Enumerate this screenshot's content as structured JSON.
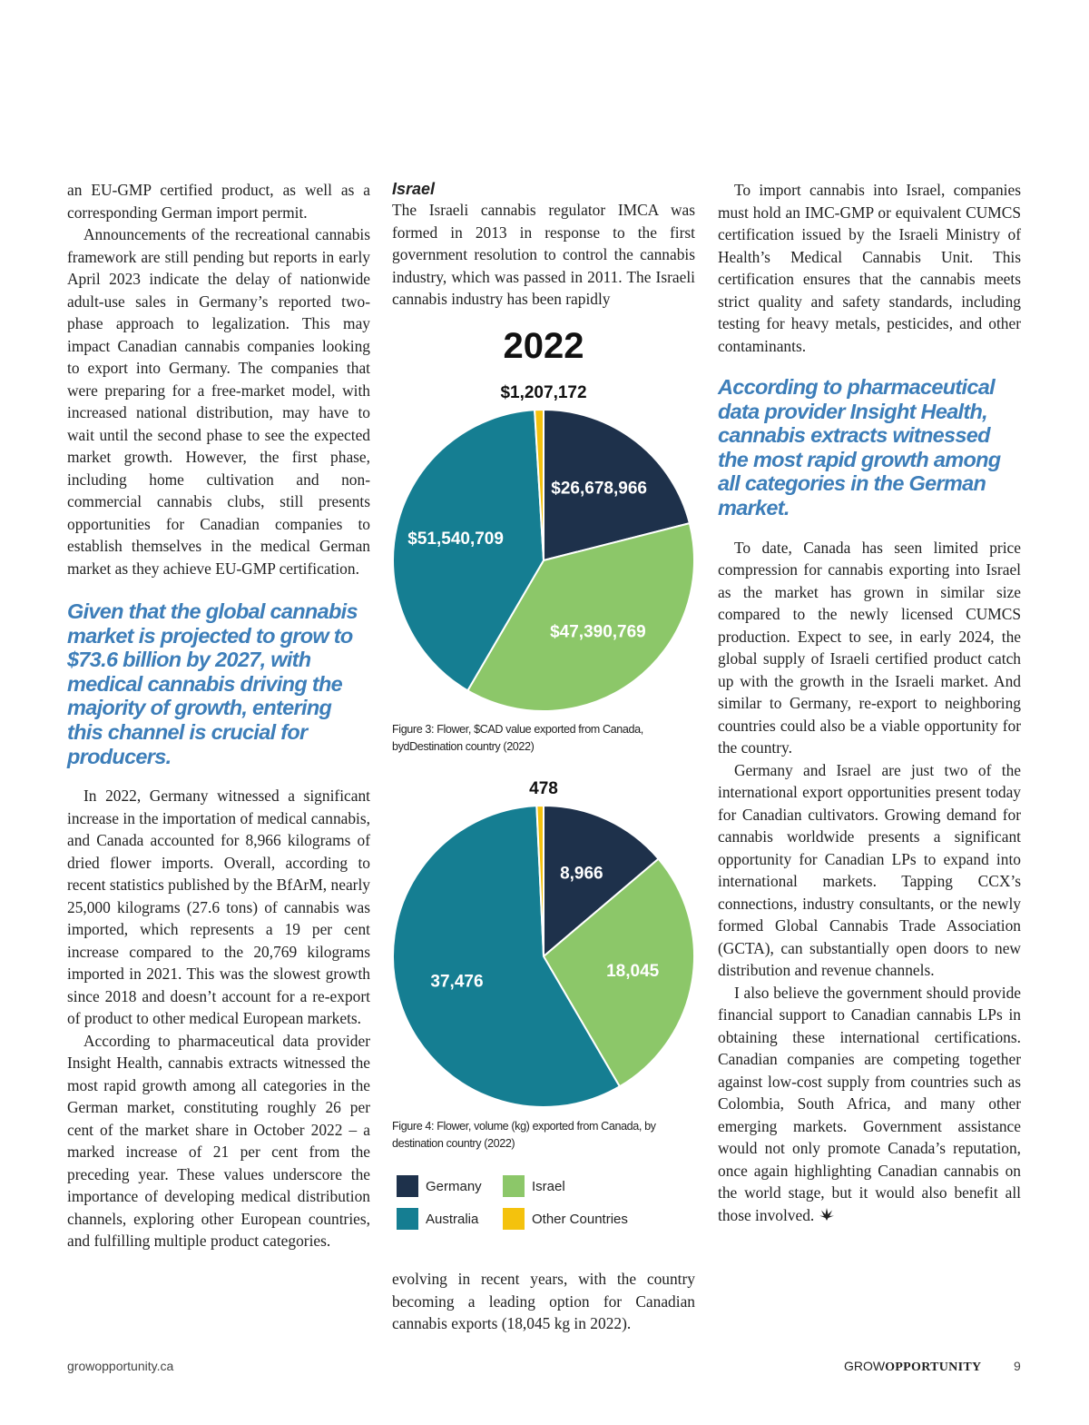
{
  "column1": {
    "paragraphs": [
      "an EU-GMP certified product, as well as a corresponding German import permit.",
      "Announcements of the recreational cannabis framework are still pending but reports in early April 2023 indicate the delay of nationwide adult-use sales in Germany’s reported two-phase approach to legalization. This may impact Canadian cannabis companies looking to export into Germany. The companies that were preparing for a free-market model, with increased national distribution, may have to wait until the second phase to see the expected market growth. However, the first phase, including home cultivation and non-commercial cannabis clubs, still presents opportunities for Canadian companies to establish themselves in the medical German market as they achieve EU-GMP certification."
    ],
    "pull_quote": "Given that the global cannabis market is projected to grow to $73.6 billion by 2027, with medical cannabis driving the majority of growth, entering this channel is crucial for producers.",
    "paragraphs_after": [
      "In 2022, Germany witnessed a significant increase in the importation of medical cannabis, and Canada accounted for 8,966 kilograms of dried flower imports. Overall, according to recent statistics published by the BfArM, nearly 25,000 kilograms (27.6 tons) of cannabis was imported, which represents a 19 per cent increase compared to the 20,769 kilograms imported in 2021. This was the slowest growth since 2018 and doesn’t account for a re-export of product to other medical European markets.",
      "According to pharmaceutical data provider Insight Health, cannabis extracts witnessed the most rapid growth among all categories in the German market, constituting roughly 26 per cent of the market share in October 2022 – a marked increase of 21 per cent from the preceding year. These values underscore the importance of developing medical distribution channels, exploring other European countries, and fulfilling multiple product categories."
    ]
  },
  "column2": {
    "heading": "Israel",
    "paragraph_before": "The Israeli cannabis regulator IMCA was formed in 2013 in response to the first government resolution to control the cannabis industry, which was passed in 2011. The Israeli cannabis industry has been rapidly",
    "paragraph_after": "evolving in recent years, with the country becoming a leading option for Canadian cannabis exports (18,045 kg in 2022)."
  },
  "column3": {
    "paragraphs": [
      "To import cannabis into Israel, companies must hold an IMC-GMP or equivalent CUMCS certification issued by the Israeli Ministry of Health’s Medical Cannabis Unit. This certification ensures that the cannabis meets strict quality and safety standards, including testing for heavy metals, pesticides, and other contaminants."
    ],
    "pull_quote": "According to pharmaceutical data provider Insight Health, cannabis extracts witnessed the most rapid growth among all categories in the German market.",
    "paragraphs_after": [
      "To date, Canada has seen limited price compression for cannabis exporting into Israel as the market has grown in similar size compared to the newly licensed CUMCS production. Expect to see, in early 2024, the global supply of Israeli certified product catch up with the growth in the Israeli market. And similar to Germany, re-export to neighboring countries could also be a viable opportunity for the country.",
      "Germany and Israel are just two of the international export opportunities present today for Canadian cultivators. Growing demand for cannabis worldwide presents a significant opportunity for Canadian LPs to expand into international markets. Tapping CCX’s connections, industry consultants, or the newly formed Global Cannabis Trade Association (GCTA), can substantially open doors to new distribution and revenue channels.",
      "I also believe the government should provide financial support to Canadian cannabis LPs in obtaining these international certifications. Canadian companies are competing together against low-cost supply from countries such as Colombia, South Africa, and many other emerging markets. Government assistance would not only promote Canada’s reputation, once again highlighting Canadian cannabis on the world stage, but it would also benefit all those involved."
    ]
  },
  "chart_data": [
    {
      "type": "pie",
      "title": "2022",
      "caption": "Figure 3: Flower, $CAD value exported from Canada, bydDestination country (2022)",
      "categories": [
        "Germany",
        "Israel",
        "Australia",
        "Other Countries"
      ],
      "values": [
        26678966,
        47390769,
        51540709,
        1207172
      ],
      "value_labels": [
        "$26,678,966",
        "$47,390,769",
        "$51,540,709",
        "$1,207,172"
      ],
      "colors": [
        "#1e314b",
        "#8cc769",
        "#157e92",
        "#f4c20d"
      ]
    },
    {
      "type": "pie",
      "caption": "Figure 4: Flower, volume (kg) exported from Canada, by destination country (2022)",
      "categories": [
        "Germany",
        "Israel",
        "Australia",
        "Other Countries"
      ],
      "values": [
        8966,
        18045,
        37476,
        478
      ],
      "value_labels": [
        "8,966",
        "18,045",
        "37,476",
        "478"
      ],
      "colors": [
        "#1e314b",
        "#8cc769",
        "#157e92",
        "#f4c20d"
      ],
      "legend": true
    }
  ],
  "footer": {
    "site": "growopportunity.ca",
    "brand_light": "GROW",
    "brand_bold": "OPPORTUNITY",
    "page_number": 9
  }
}
